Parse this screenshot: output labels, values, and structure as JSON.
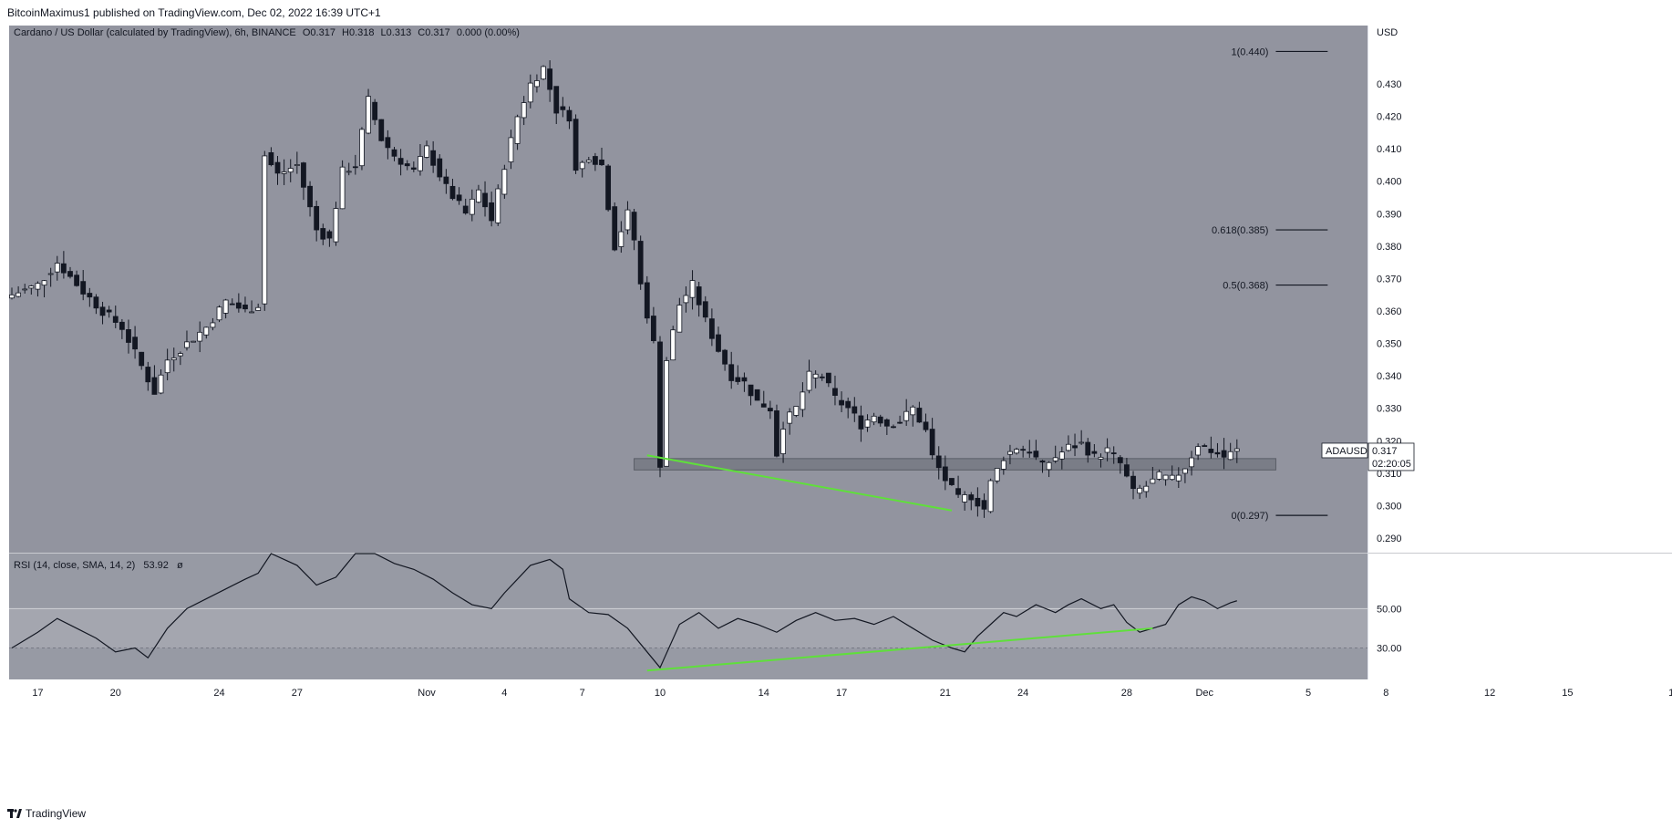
{
  "header": {
    "published": "BitcoinMaximus1 published on TradingView.com, Dec 02, 2022 16:39 UTC+1"
  },
  "footer": {
    "brand": "TradingView"
  },
  "chart_data": [
    {
      "type": "candlestick",
      "title": "Cardano / US Dollar (calculated by TradingView), 6h, BINANCE",
      "ohlc": {
        "o_label": "O",
        "o": "0.317",
        "h_label": "H",
        "h": "0.318",
        "l_label": "L",
        "l": "0.313",
        "c_label": "C",
        "c": "0.317",
        "change": "0.000 (0.00%)"
      },
      "currency": "USD",
      "ylim": [
        0.2855,
        0.448
      ],
      "y_ticks": [
        {
          "v": 0.43,
          "label": "0.430"
        },
        {
          "v": 0.42,
          "label": "0.420"
        },
        {
          "v": 0.41,
          "label": "0.410"
        },
        {
          "v": 0.4,
          "label": "0.400"
        },
        {
          "v": 0.39,
          "label": "0.390"
        },
        {
          "v": 0.38,
          "label": "0.380"
        },
        {
          "v": 0.37,
          "label": "0.370"
        },
        {
          "v": 0.36,
          "label": "0.360"
        },
        {
          "v": 0.35,
          "label": "0.350"
        },
        {
          "v": 0.34,
          "label": "0.340"
        },
        {
          "v": 0.33,
          "label": "0.330"
        },
        {
          "v": 0.32,
          "label": "0.320"
        },
        {
          "v": 0.31,
          "label": "0.310"
        },
        {
          "v": 0.3,
          "label": "0.300"
        },
        {
          "v": 0.29,
          "label": "0.290"
        }
      ],
      "x_ticks": [
        {
          "bar": 4,
          "label": "17"
        },
        {
          "bar": 16,
          "label": "20"
        },
        {
          "bar": 32,
          "label": "24"
        },
        {
          "bar": 44,
          "label": "27"
        },
        {
          "bar": 64,
          "label": "Nov"
        },
        {
          "bar": 76,
          "label": "4"
        },
        {
          "bar": 88,
          "label": "7"
        },
        {
          "bar": 100,
          "label": "10"
        },
        {
          "bar": 116,
          "label": "14"
        },
        {
          "bar": 128,
          "label": "17"
        },
        {
          "bar": 144,
          "label": "21"
        },
        {
          "bar": 156,
          "label": "24"
        },
        {
          "bar": 172,
          "label": "28"
        },
        {
          "bar": 184,
          "label": "Dec"
        },
        {
          "bar": 200,
          "label": "5"
        },
        {
          "bar": 212,
          "label": "8"
        },
        {
          "bar": 228,
          "label": "12"
        },
        {
          "bar": 240,
          "label": "15"
        },
        {
          "bar": 256,
          "label": "1"
        }
      ],
      "price_path": [
        [
          0,
          0.365
        ],
        [
          4,
          0.368
        ],
        [
          7,
          0.375
        ],
        [
          11,
          0.366
        ],
        [
          14,
          0.36
        ],
        [
          17,
          0.355
        ],
        [
          20,
          0.343
        ],
        [
          22,
          0.335
        ],
        [
          24,
          0.345
        ],
        [
          27,
          0.35
        ],
        [
          30,
          0.355
        ],
        [
          33,
          0.363
        ],
        [
          36,
          0.36
        ],
        [
          38,
          0.362
        ],
        [
          39,
          0.408
        ],
        [
          41,
          0.402
        ],
        [
          44,
          0.405
        ],
        [
          47,
          0.385
        ],
        [
          49,
          0.382
        ],
        [
          51,
          0.403
        ],
        [
          53,
          0.405
        ],
        [
          55,
          0.425
        ],
        [
          57,
          0.413
        ],
        [
          59,
          0.408
        ],
        [
          62,
          0.403
        ],
        [
          64,
          0.41
        ],
        [
          67,
          0.398
        ],
        [
          70,
          0.39
        ],
        [
          72,
          0.397
        ],
        [
          74,
          0.388
        ],
        [
          76,
          0.405
        ],
        [
          78,
          0.42
        ],
        [
          80,
          0.43
        ],
        [
          82,
          0.435
        ],
        [
          84,
          0.422
        ],
        [
          86,
          0.42
        ],
        [
          87,
          0.403
        ],
        [
          89,
          0.408
        ],
        [
          91,
          0.405
        ],
        [
          93,
          0.38
        ],
        [
          95,
          0.39
        ],
        [
          96,
          0.382
        ],
        [
          97,
          0.368
        ],
        [
          99,
          0.35
        ],
        [
          100,
          0.313
        ],
        [
          101,
          0.345
        ],
        [
          103,
          0.362
        ],
        [
          105,
          0.368
        ],
        [
          107,
          0.357
        ],
        [
          109,
          0.348
        ],
        [
          111,
          0.34
        ],
        [
          113,
          0.338
        ],
        [
          115,
          0.332
        ],
        [
          117,
          0.33
        ],
        [
          118,
          0.316
        ],
        [
          119,
          0.325
        ],
        [
          121,
          0.33
        ],
        [
          123,
          0.34
        ],
        [
          125,
          0.34
        ],
        [
          127,
          0.333
        ],
        [
          129,
          0.33
        ],
        [
          131,
          0.325
        ],
        [
          133,
          0.328
        ],
        [
          135,
          0.325
        ],
        [
          137,
          0.326
        ],
        [
          139,
          0.33
        ],
        [
          141,
          0.323
        ],
        [
          142,
          0.315
        ],
        [
          144,
          0.308
        ],
        [
          146,
          0.302
        ],
        [
          148,
          0.303
        ],
        [
          150,
          0.299
        ],
        [
          151,
          0.307
        ],
        [
          153,
          0.315
        ],
        [
          155,
          0.318
        ],
        [
          157,
          0.317
        ],
        [
          159,
          0.312
        ],
        [
          161,
          0.315
        ],
        [
          163,
          0.318
        ],
        [
          165,
          0.319
        ],
        [
          167,
          0.315
        ],
        [
          169,
          0.317
        ],
        [
          171,
          0.313
        ],
        [
          173,
          0.304
        ],
        [
          175,
          0.306
        ],
        [
          177,
          0.309
        ],
        [
          179,
          0.308
        ],
        [
          181,
          0.312
        ],
        [
          183,
          0.319
        ],
        [
          185,
          0.317
        ],
        [
          187,
          0.315
        ],
        [
          189,
          0.317
        ]
      ],
      "fibonacci": [
        {
          "label": "1(0.440)",
          "v": 0.44
        },
        {
          "label": "0.618(0.385)",
          "v": 0.385
        },
        {
          "label": "0.5(0.368)",
          "v": 0.368
        },
        {
          "label": "0(0.297)",
          "v": 0.297
        }
      ],
      "fib_line_bars": [
        195,
        203
      ],
      "support_zone": {
        "low": 0.311,
        "high": 0.3145,
        "bars": [
          96,
          195
        ]
      },
      "trendline": {
        "from": [
          98,
          0.3155
        ],
        "to": [
          145,
          0.2985
        ],
        "color": "#5fe03a"
      },
      "last_price": {
        "symbol": "ADAUSD",
        "price": "0.317",
        "countdown": "02:20:05",
        "v": 0.317
      }
    },
    {
      "type": "line",
      "title": "RSI (14, close, SMA, 14, 2)",
      "last_value": "53.92",
      "flag": "ø",
      "ylim": [
        14,
        78
      ],
      "y_ticks": [
        {
          "v": 50,
          "label": "50.00"
        },
        {
          "v": 30,
          "label": "30.00"
        }
      ],
      "levels": [
        {
          "v": 30,
          "style": "dashed"
        }
      ],
      "band_top": 50,
      "series": [
        [
          0,
          30
        ],
        [
          4,
          38
        ],
        [
          7,
          45
        ],
        [
          10,
          40
        ],
        [
          13,
          35
        ],
        [
          16,
          28
        ],
        [
          19,
          30
        ],
        [
          21,
          25
        ],
        [
          24,
          40
        ],
        [
          27,
          50
        ],
        [
          30,
          55
        ],
        [
          33,
          60
        ],
        [
          36,
          65
        ],
        [
          38,
          68
        ],
        [
          40,
          78
        ],
        [
          44,
          72
        ],
        [
          47,
          62
        ],
        [
          50,
          66
        ],
        [
          53,
          78
        ],
        [
          56,
          78
        ],
        [
          59,
          73
        ],
        [
          62,
          70
        ],
        [
          65,
          65
        ],
        [
          68,
          58
        ],
        [
          71,
          52
        ],
        [
          74,
          50
        ],
        [
          76,
          58
        ],
        [
          78,
          65
        ],
        [
          80,
          72
        ],
        [
          83,
          75
        ],
        [
          85,
          70
        ],
        [
          86,
          55
        ],
        [
          89,
          48
        ],
        [
          92,
          47
        ],
        [
          95,
          40
        ],
        [
          97,
          32
        ],
        [
          99,
          24
        ],
        [
          100,
          20
        ],
        [
          103,
          42
        ],
        [
          106,
          48
        ],
        [
          109,
          40
        ],
        [
          112,
          45
        ],
        [
          115,
          42
        ],
        [
          118,
          38
        ],
        [
          121,
          44
        ],
        [
          124,
          48
        ],
        [
          127,
          44
        ],
        [
          130,
          45
        ],
        [
          133,
          42
        ],
        [
          136,
          46
        ],
        [
          139,
          40
        ],
        [
          142,
          34
        ],
        [
          145,
          30
        ],
        [
          147,
          28
        ],
        [
          149,
          36
        ],
        [
          151,
          42
        ],
        [
          153,
          48
        ],
        [
          155,
          46
        ],
        [
          158,
          52
        ],
        [
          161,
          48
        ],
        [
          163,
          52
        ],
        [
          165,
          55
        ],
        [
          168,
          50
        ],
        [
          170,
          52
        ],
        [
          172,
          43
        ],
        [
          174,
          38
        ],
        [
          176,
          40
        ],
        [
          178,
          42
        ],
        [
          180,
          52
        ],
        [
          182,
          56
        ],
        [
          184,
          54
        ],
        [
          186,
          50
        ],
        [
          188,
          53
        ],
        [
          189,
          54
        ]
      ],
      "trendline": {
        "from": [
          98,
          18.5
        ],
        "to": [
          176,
          40
        ],
        "color": "#5fe03a"
      }
    }
  ]
}
